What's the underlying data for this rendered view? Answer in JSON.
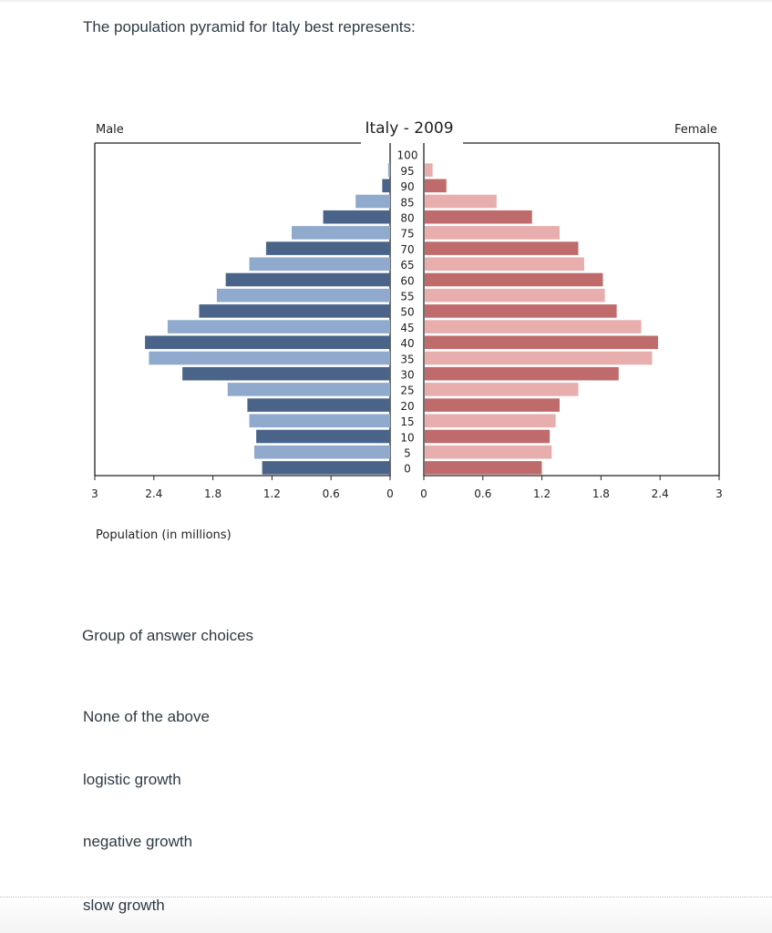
{
  "question": {
    "text": "The population pyramid for Italy best represents:"
  },
  "choices_heading": "Group of answer choices",
  "answers": [
    "None of the above",
    "logistic growth",
    "negative growth",
    "slow growth"
  ],
  "chart_data": {
    "type": "bar",
    "orientation": "horizontal",
    "title": "Italy - 2009",
    "left_label": "Male",
    "right_label": "Female",
    "xlabel": "Population (in millions)",
    "xlim": [
      0,
      3
    ],
    "x_ticks": [
      "3",
      "2.4",
      "1.8",
      "1.2",
      "0.6",
      "0",
      "0",
      "0.6",
      "1.2",
      "1.8",
      "2.4",
      "3"
    ],
    "categories": [
      "0",
      "5",
      "10",
      "15",
      "20",
      "25",
      "30",
      "35",
      "40",
      "45",
      "50",
      "55",
      "60",
      "65",
      "70",
      "75",
      "80",
      "85",
      "90",
      "95",
      "100"
    ],
    "series": [
      {
        "name": "Male",
        "color_light": "#8faacc",
        "color_dark": "#4a6489",
        "values": [
          1.3,
          1.38,
          1.36,
          1.43,
          1.45,
          1.65,
          2.11,
          2.45,
          2.49,
          2.26,
          1.94,
          1.76,
          1.67,
          1.43,
          1.26,
          1.0,
          0.68,
          0.35,
          0.08,
          0.02,
          0.0
        ]
      },
      {
        "name": "Female",
        "color_light": "#e8aeae",
        "color_dark": "#c06b6b",
        "values": [
          1.19,
          1.29,
          1.27,
          1.33,
          1.37,
          1.56,
          1.97,
          2.31,
          2.37,
          2.2,
          1.95,
          1.83,
          1.81,
          1.62,
          1.56,
          1.37,
          1.09,
          0.73,
          0.22,
          0.08,
          0.0
        ]
      }
    ]
  }
}
